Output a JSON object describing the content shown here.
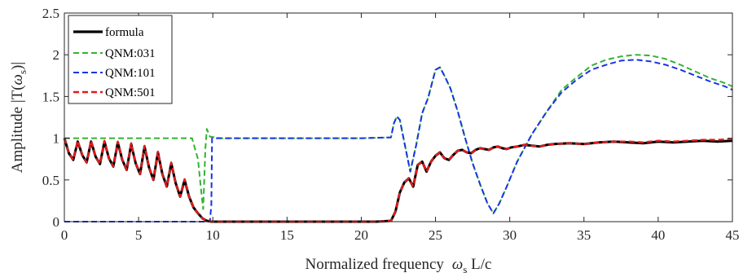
{
  "chart_data": {
    "type": "line",
    "xlabel_prefix": "Normalized frequency",
    "xlabel_symbol": "ω",
    "xlabel_subscript": "s",
    "xlabel_suffix": " L/c",
    "ylabel_prefix": "Amplitude |T(",
    "ylabel_symbol": "ω",
    "ylabel_subscript": "s",
    "ylabel_suffix": ")|",
    "xlim": [
      0,
      45
    ],
    "ylim": [
      0,
      2.5
    ],
    "xticks": [
      0,
      5,
      10,
      15,
      20,
      25,
      30,
      35,
      40,
      45
    ],
    "yticks": [
      0,
      0.5,
      1,
      1.5,
      2,
      2.5
    ],
    "xtick_labels": [
      "0",
      "5",
      "10",
      "15",
      "20",
      "25",
      "30",
      "35",
      "40",
      "45"
    ],
    "ytick_labels": [
      "0",
      "0.5",
      "1",
      "1.5",
      "2",
      "2.5"
    ],
    "grid": false,
    "legend_position": "top-left",
    "series": [
      {
        "name": "formula",
        "color": "#000000",
        "style": "solid",
        "x": [
          0,
          0.3,
          0.6,
          0.9,
          1.2,
          1.5,
          1.8,
          2.1,
          2.4,
          2.7,
          3.0,
          3.3,
          3.6,
          3.9,
          4.2,
          4.5,
          4.8,
          5.1,
          5.4,
          5.7,
          6.0,
          6.3,
          6.6,
          6.9,
          7.2,
          7.5,
          7.8,
          8.1,
          8.4,
          8.7,
          9.0,
          9.3,
          9.6,
          9.9,
          10.5,
          12,
          15,
          18,
          21,
          22.0,
          22.3,
          22.6,
          22.9,
          23.2,
          23.5,
          23.8,
          24.1,
          24.4,
          24.7,
          25.0,
          25.3,
          25.6,
          25.9,
          26.2,
          26.5,
          26.8,
          27.1,
          27.4,
          27.7,
          28.0,
          28.3,
          28.6,
          28.9,
          29.2,
          29.5,
          29.8,
          30.1,
          30.5,
          31,
          31.5,
          32,
          32.5,
          33,
          34,
          35,
          36,
          37,
          38,
          39,
          40,
          41,
          42,
          43,
          44,
          45
        ],
        "y": [
          1.0,
          0.82,
          0.74,
          0.96,
          0.8,
          0.71,
          0.96,
          0.78,
          0.69,
          0.96,
          0.76,
          0.66,
          0.95,
          0.74,
          0.62,
          0.93,
          0.7,
          0.57,
          0.9,
          0.65,
          0.5,
          0.83,
          0.57,
          0.42,
          0.7,
          0.46,
          0.3,
          0.5,
          0.3,
          0.17,
          0.1,
          0.04,
          0.01,
          0.0,
          0.0,
          0.0,
          0.0,
          0.0,
          0.0,
          0.01,
          0.12,
          0.35,
          0.47,
          0.52,
          0.42,
          0.68,
          0.72,
          0.6,
          0.72,
          0.79,
          0.83,
          0.76,
          0.74,
          0.8,
          0.85,
          0.86,
          0.83,
          0.82,
          0.86,
          0.88,
          0.87,
          0.86,
          0.89,
          0.9,
          0.88,
          0.87,
          0.89,
          0.9,
          0.92,
          0.91,
          0.9,
          0.92,
          0.93,
          0.94,
          0.93,
          0.95,
          0.96,
          0.95,
          0.94,
          0.96,
          0.95,
          0.96,
          0.97,
          0.96,
          0.97
        ]
      },
      {
        "name": "QNM:031",
        "color": "#33b233",
        "style": "dashed",
        "x": [
          0,
          2,
          4,
          6,
          8,
          8.6,
          9.0,
          9.2,
          9.35,
          9.5,
          9.6,
          9.8,
          10.5,
          15,
          20,
          22.0,
          22.2,
          22.4,
          22.6,
          22.9,
          23.3,
          23.7,
          24.1,
          24.5,
          25.0,
          25.3,
          25.6,
          26.0,
          26.5,
          27,
          27.5,
          28,
          28.5,
          28.9,
          29.3,
          29.8,
          30.5,
          31.5,
          32.5,
          33.5,
          34.5,
          35.5,
          36.5,
          37.5,
          38.5,
          39.5,
          40.5,
          41.5,
          42.5,
          43.5,
          44.5,
          45
        ],
        "y": [
          1.0,
          1.0,
          1.0,
          1.0,
          1.0,
          1.0,
          0.75,
          0.4,
          0.15,
          0.88,
          1.11,
          1.02,
          1.0,
          1.0,
          1.0,
          1.01,
          1.18,
          1.26,
          1.22,
          0.95,
          0.6,
          0.92,
          1.3,
          1.48,
          1.82,
          1.85,
          1.75,
          1.6,
          1.32,
          1.0,
          0.7,
          0.45,
          0.22,
          0.1,
          0.22,
          0.42,
          0.72,
          1.05,
          1.32,
          1.58,
          1.73,
          1.87,
          1.94,
          1.98,
          2.0,
          1.99,
          1.95,
          1.88,
          1.8,
          1.72,
          1.66,
          1.62
        ]
      },
      {
        "name": "QNM:101",
        "color": "#1a33e6",
        "style": "dashed",
        "x": [
          0,
          9.6,
          9.7,
          9.8,
          9.9,
          9.95,
          10.5,
          15,
          20,
          22.0,
          22.2,
          22.4,
          22.6,
          22.9,
          23.3,
          23.7,
          24.1,
          24.5,
          25.0,
          25.3,
          25.6,
          26.0,
          26.5,
          27,
          27.5,
          28,
          28.5,
          28.9,
          29.3,
          29.8,
          30.5,
          31.5,
          32.5,
          33.5,
          34.5,
          35.5,
          36.5,
          37.5,
          38.5,
          39.5,
          40.5,
          41.5,
          42.5,
          43.5,
          44.5,
          45
        ],
        "y": [
          0.0,
          0.0,
          0.0,
          0.0,
          0.2,
          1.0,
          1.0,
          1.0,
          1.0,
          1.01,
          1.18,
          1.26,
          1.22,
          0.95,
          0.6,
          0.92,
          1.3,
          1.48,
          1.82,
          1.85,
          1.75,
          1.6,
          1.32,
          1.0,
          0.7,
          0.45,
          0.22,
          0.1,
          0.22,
          0.42,
          0.72,
          1.05,
          1.32,
          1.55,
          1.7,
          1.82,
          1.88,
          1.93,
          1.94,
          1.92,
          1.88,
          1.82,
          1.75,
          1.68,
          1.62,
          1.58
        ]
      },
      {
        "name": "QNM:501",
        "color": "#e61a1a",
        "style": "dashed",
        "x": [
          0,
          0.3,
          0.6,
          0.9,
          1.2,
          1.5,
          1.8,
          2.1,
          2.4,
          2.7,
          3.0,
          3.3,
          3.6,
          3.9,
          4.2,
          4.5,
          4.8,
          5.1,
          5.4,
          5.7,
          6.0,
          6.3,
          6.6,
          6.9,
          7.2,
          7.5,
          7.8,
          8.1,
          8.4,
          8.7,
          9.0,
          9.3,
          9.6,
          9.9,
          10.5,
          12,
          15,
          18,
          21,
          22.0,
          22.3,
          22.6,
          22.9,
          23.2,
          23.5,
          23.8,
          24.1,
          24.4,
          24.7,
          25.0,
          25.3,
          25.6,
          25.9,
          26.2,
          26.5,
          26.8,
          27.1,
          27.4,
          27.7,
          28.0,
          28.3,
          28.6,
          28.9,
          29.2,
          29.5,
          29.8,
          30.1,
          30.5,
          31,
          31.5,
          32,
          32.5,
          33,
          34,
          35,
          36,
          37,
          38,
          39,
          40,
          41,
          42,
          43,
          44,
          45
        ],
        "y": [
          1.0,
          0.82,
          0.74,
          0.97,
          0.8,
          0.71,
          0.97,
          0.78,
          0.69,
          0.97,
          0.76,
          0.66,
          0.96,
          0.74,
          0.62,
          0.94,
          0.7,
          0.57,
          0.91,
          0.65,
          0.5,
          0.84,
          0.57,
          0.42,
          0.71,
          0.46,
          0.3,
          0.51,
          0.3,
          0.17,
          0.1,
          0.04,
          0.01,
          0.0,
          0.0,
          0.0,
          0.0,
          0.0,
          0.0,
          0.01,
          0.12,
          0.35,
          0.47,
          0.52,
          0.42,
          0.68,
          0.72,
          0.6,
          0.72,
          0.79,
          0.83,
          0.76,
          0.74,
          0.8,
          0.85,
          0.86,
          0.83,
          0.82,
          0.86,
          0.88,
          0.87,
          0.86,
          0.89,
          0.9,
          0.88,
          0.87,
          0.89,
          0.9,
          0.92,
          0.91,
          0.9,
          0.92,
          0.93,
          0.94,
          0.93,
          0.95,
          0.96,
          0.96,
          0.95,
          0.97,
          0.96,
          0.97,
          0.98,
          0.98,
          0.99
        ]
      }
    ]
  }
}
